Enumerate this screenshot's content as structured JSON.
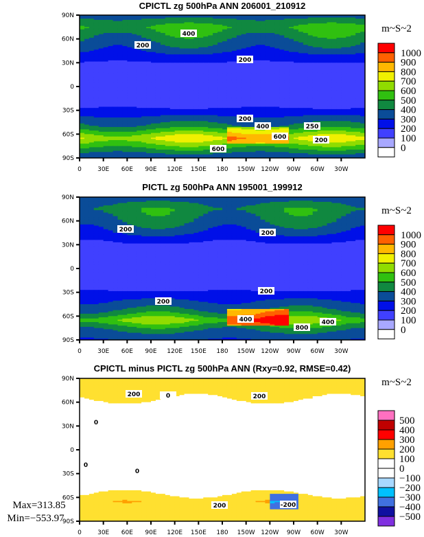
{
  "chart_data": [
    {
      "type": "heatmap",
      "title": "CPICTL zg 500hPa ANN 206001_210912",
      "units": "m~S~2",
      "levels": [
        "1000",
        "900",
        "800",
        "700",
        "600",
        "500",
        "400",
        "300",
        "200",
        "100",
        "0"
      ],
      "colors": [
        "#ff0000",
        "#ff6000",
        "#ffb800",
        "#f0f000",
        "#90dc00",
        "#30c010",
        "#108840",
        "#0a4c98",
        "#0010e8",
        "#4040ff",
        "#a8a8ff",
        "#ffffff"
      ],
      "zonal_profile": {
        "lat": [
          90,
          75,
          60,
          45,
          35,
          20,
          0,
          -20,
          -30,
          -40,
          -50,
          -57,
          -65,
          -75,
          -85,
          -90
        ],
        "value": [
          350,
          520,
          420,
          320,
          220,
          150,
          150,
          150,
          220,
          330,
          430,
          560,
          720,
          560,
          380,
          320
        ]
      },
      "contour_labels": [
        "400",
        "200",
        "200",
        "200",
        "400",
        "250",
        "600",
        "600",
        "200"
      ],
      "xticks": [
        "0",
        "30E",
        "60E",
        "90E",
        "120E",
        "150E",
        "180",
        "150W",
        "120W",
        "90W",
        "60W",
        "30W"
      ],
      "yticks": [
        "90N",
        "60N",
        "30N",
        "0",
        "30S",
        "60S",
        "90S"
      ]
    },
    {
      "type": "heatmap",
      "title": "PICTL zg 500hPa ANN 195001_199912",
      "units": "m~S~2",
      "levels": [
        "1000",
        "900",
        "800",
        "700",
        "600",
        "500",
        "400",
        "300",
        "200",
        "100",
        "0"
      ],
      "colors": [
        "#ff0000",
        "#ff6000",
        "#ffb800",
        "#f0f000",
        "#90dc00",
        "#30c010",
        "#108840",
        "#0a4c98",
        "#0010e8",
        "#4040ff",
        "#a8a8ff",
        "#ffffff"
      ],
      "zonal_profile": {
        "lat": [
          90,
          75,
          60,
          45,
          35,
          20,
          0,
          -20,
          -30,
          -40,
          -50,
          -57,
          -65,
          -75,
          -85,
          -90
        ],
        "value": [
          340,
          460,
          400,
          310,
          210,
          150,
          150,
          150,
          210,
          300,
          380,
          470,
          620,
          450,
          330,
          300
        ]
      },
      "contour_labels": [
        "200",
        "200",
        "200",
        "200",
        "400",
        "800",
        "400"
      ],
      "xticks": [
        "0",
        "30E",
        "60E",
        "90E",
        "120E",
        "150E",
        "180",
        "150W",
        "120W",
        "90W",
        "60W",
        "30W"
      ],
      "yticks": [
        "90N",
        "60N",
        "30N",
        "0",
        "30S",
        "60S",
        "90S"
      ]
    },
    {
      "type": "heatmap",
      "title": "CPICTL minus PICTL zg 500hPa ANN (Rxy=0.92, RMSE=0.42)",
      "units": "m~S~2",
      "levels": [
        "500",
        "400",
        "300",
        "200",
        "100",
        "0",
        "−100",
        "−200",
        "−300",
        "−400",
        "−500"
      ],
      "colors": [
        "#ff70c0",
        "#c00000",
        "#ff0000",
        "#ffa000",
        "#ffe030",
        "#ffffff",
        "#ffffff",
        "#a8d8ff",
        "#00c0ff",
        "#4070e0",
        "#1010a0",
        "#8030e0"
      ],
      "zonal_profile": {
        "lat": [
          90,
          75,
          65,
          55,
          45,
          20,
          0,
          -20,
          -40,
          -50,
          -57,
          -65,
          -75,
          -85,
          -90
        ],
        "value": [
          120,
          150,
          110,
          40,
          20,
          10,
          0,
          10,
          30,
          60,
          110,
          170,
          130,
          120,
          120
        ]
      },
      "contour_labels": [
        "200",
        "0",
        "200",
        "0",
        "0",
        "0",
        "200",
        "-200"
      ],
      "stats": {
        "max": "Max=313.85",
        "min": "Min=−553.97"
      },
      "xticks": [
        "0",
        "30E",
        "60E",
        "90E",
        "120E",
        "150E",
        "180",
        "150W",
        "120W",
        "90W",
        "60W",
        "30W"
      ],
      "yticks": [
        "90N",
        "60N",
        "30N",
        "0",
        "30S",
        "60S",
        "90S"
      ]
    }
  ]
}
